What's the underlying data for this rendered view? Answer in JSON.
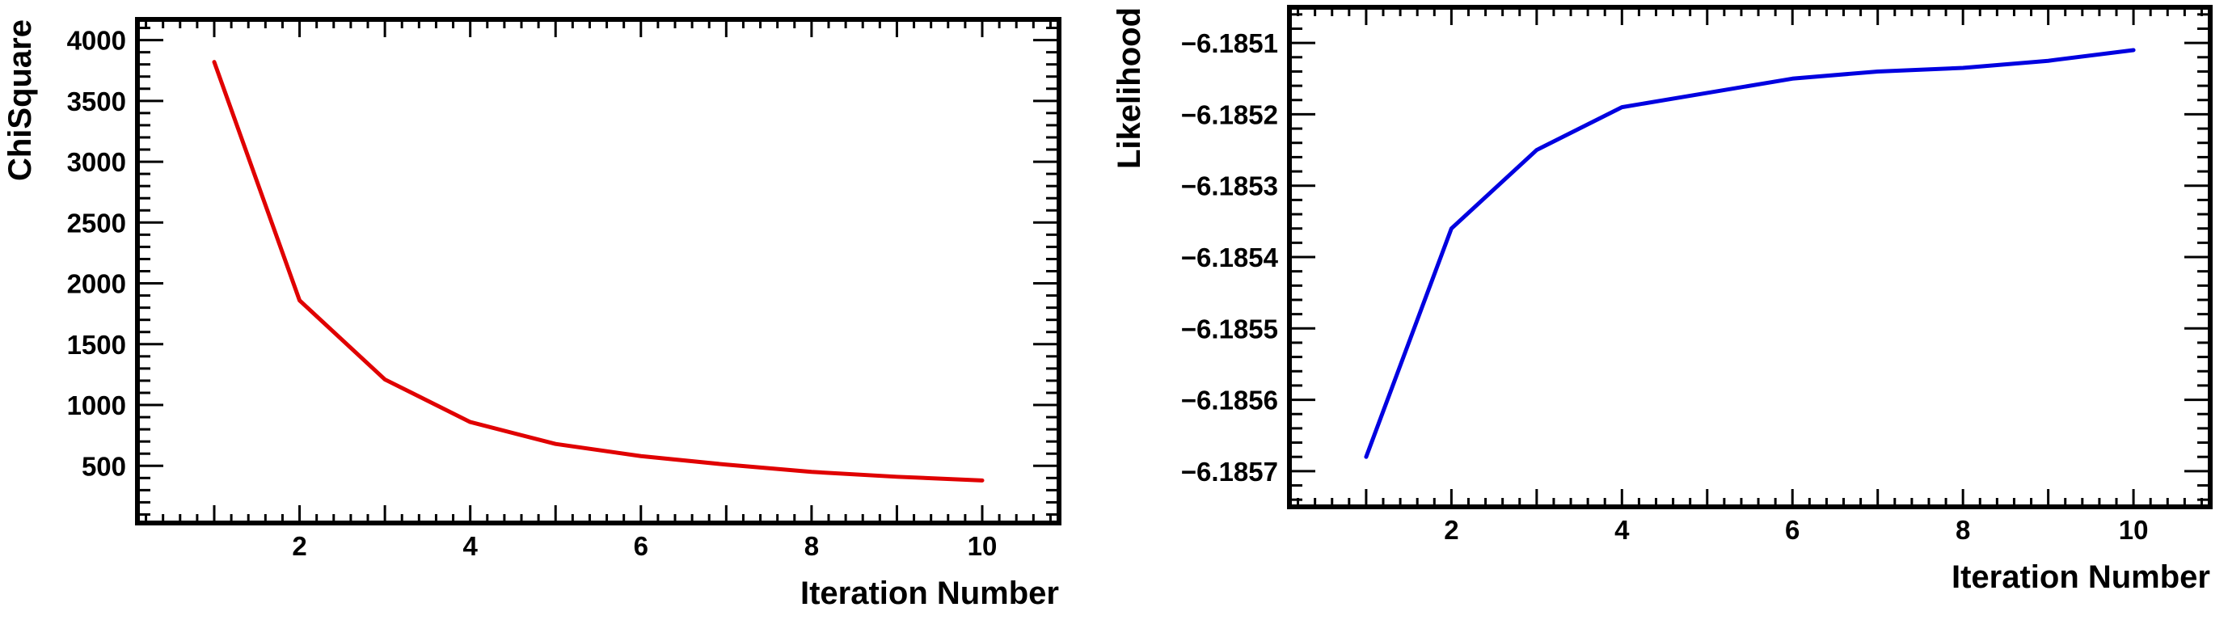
{
  "chart_data": [
    {
      "type": "line",
      "title": "",
      "xlabel": "Iteration Number",
      "ylabel": "ChiSquare",
      "xlim": [
        0.1,
        10.9
      ],
      "ylim": [
        30,
        4170
      ],
      "x_ticks": [
        2,
        4,
        6,
        8,
        10
      ],
      "x_tick_labels": [
        "2",
        "4",
        "6",
        "8",
        "10"
      ],
      "y_ticks": [
        500,
        1000,
        1500,
        2000,
        2500,
        3000,
        3500,
        4000
      ],
      "y_tick_labels": [
        "500",
        "1000",
        "1500",
        "2000",
        "2500",
        "3000",
        "3500",
        "4000"
      ],
      "grid": false,
      "line_color": "#e00000",
      "series": [
        {
          "x": [
            1,
            2,
            3,
            4,
            5,
            6,
            7,
            8,
            9,
            10
          ],
          "values": [
            3820,
            1860,
            1210,
            860,
            680,
            580,
            510,
            450,
            410,
            380
          ]
        }
      ]
    },
    {
      "type": "line",
      "title": "",
      "xlabel": "Iteration Number",
      "ylabel": "Likelihood",
      "xlim": [
        0.1,
        10.9
      ],
      "ylim": [
        -6.18575,
        -6.18505
      ],
      "x_ticks": [
        2,
        4,
        6,
        8,
        10
      ],
      "x_tick_labels": [
        "2",
        "4",
        "6",
        "8",
        "10"
      ],
      "y_ticks": [
        -6.1857,
        -6.1856,
        -6.1855,
        -6.1854,
        -6.1853,
        -6.1852,
        -6.1851
      ],
      "y_tick_labels": [
        "−6.1857",
        "−6.1856",
        "−6.1855",
        "−6.1854",
        "−6.1853",
        "−6.1852",
        "−6.1851"
      ],
      "grid": false,
      "line_color": "#0000e0",
      "series": [
        {
          "x": [
            1,
            2,
            3,
            4,
            5,
            6,
            7,
            8,
            9,
            10
          ],
          "values": [
            -6.18568,
            -6.18536,
            -6.18525,
            -6.18519,
            -6.18517,
            -6.18515,
            -6.18514,
            -6.185135,
            -6.185125,
            -6.18511
          ]
        }
      ]
    }
  ]
}
